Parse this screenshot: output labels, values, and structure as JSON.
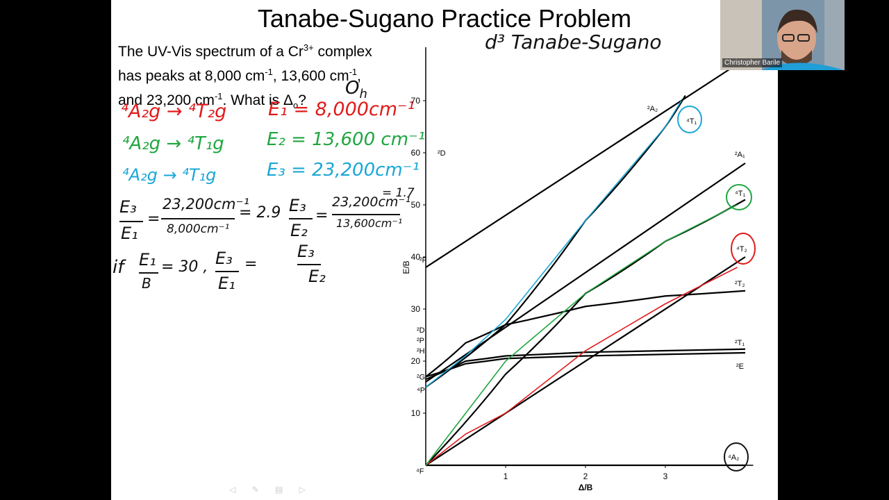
{
  "slide": {
    "title": "Tanabe-Sugano Practice Problem",
    "problem": {
      "line1_pre": "The UV-Vis spectrum of a Cr",
      "line1_sup": "3+",
      "line1_post": " complex",
      "line2_pre": "has peaks at 8,000 cm",
      "line2_sup1": "-1",
      "line2_mid": ", 13,600 cm",
      "line2_sup2": "-1",
      "line2_post": ",",
      "line3_pre": "and 23,200 cm",
      "line3_sup": "-1",
      "line3_mid": ". What is Δ",
      "line3_sub": "o",
      "line3_post": "?"
    },
    "handwriting": {
      "oh": "O",
      "oh_sub": "h",
      "diagram_label": "d³ Tanabe-Sugano",
      "row1_transition": "⁴A₂g → ⁴T₂g",
      "row1_energy": "E₁ = 8,000cm⁻¹",
      "row2_transition": "⁴A₂g → ⁴T₁g",
      "row2_energy": "E₂ = 13,600 cm⁻¹",
      "row3_transition": "⁴A₂g → ⁴T₁g",
      "row3_energy": "E₃ = 23,200cm⁻¹",
      "ratio1_lhs_num": "E₃",
      "ratio1_lhs_den": "E₁",
      "ratio1_num": "23,200cm⁻¹",
      "ratio1_den": "8,000cm⁻¹",
      "ratio1_result": "= 2.9",
      "ratio2_lhs_num": "E₃",
      "ratio2_lhs_den": "E₂",
      "ratio2_num": "23,200cm⁻¹",
      "ratio2_den": "13,600cm⁻¹",
      "ratio2_result": "= 1.7",
      "if_text": "if",
      "if_num": "E₁",
      "if_den": "B",
      "if_value": "= 30 ,",
      "if_ratio_num": "E₃",
      "if_ratio_den": "E₁",
      "if_equals": "=",
      "last_num": "E₃",
      "last_den": "E₂"
    },
    "chart": {
      "x_label": "Δ/B",
      "y_label": "E/B",
      "x_ticks": [
        "1",
        "2",
        "3"
      ],
      "y_ticks": [
        "10",
        "20",
        "30",
        "40",
        "50",
        "60",
        "70"
      ],
      "origin_label": "⁴F",
      "left_terms": [
        "²D",
        "²F",
        "²D",
        "²P",
        "²H",
        "²G",
        "⁴P"
      ],
      "right_terms": [
        "²A₂",
        "⁴T₁",
        "²A₁",
        "⁴T₁",
        "⁴T₂",
        "²T₂",
        "²T₁",
        "²E",
        "⁴A₂"
      ]
    }
  },
  "chart_data": {
    "type": "line",
    "xlabel": "Δ/B",
    "ylabel": "E/B",
    "xlim": [
      0,
      4
    ],
    "ylim": [
      0,
      75
    ],
    "series": [
      {
        "name": "⁴A₂",
        "x": [
          0,
          4
        ],
        "y": [
          0,
          0
        ]
      },
      {
        "name": "⁴T₂",
        "x": [
          0,
          4
        ],
        "y": [
          0,
          40
        ]
      },
      {
        "name": "⁴T₁",
        "x": [
          0,
          1,
          2,
          3,
          4
        ],
        "y": [
          0,
          17.5,
          33,
          43,
          51
        ]
      },
      {
        "name": "⁴T₁",
        "x": [
          0,
          1,
          2,
          3,
          3.25
        ],
        "y": [
          15,
          27,
          47,
          65,
          71
        ]
      },
      {
        "name": "²A₁",
        "x": [
          0,
          4
        ],
        "y": [
          16,
          58
        ]
      },
      {
        "name": "²A₂",
        "x": [
          0,
          4
        ],
        "y": [
          38,
          78
        ]
      },
      {
        "name": "²T₂",
        "x": [
          0,
          0.5,
          1,
          2,
          3,
          4
        ],
        "y": [
          17,
          23.5,
          27,
          30.5,
          32.5,
          33.5
        ]
      },
      {
        "name": "²T₁",
        "x": [
          0,
          0.5,
          1,
          2,
          3,
          4
        ],
        "y": [
          16.5,
          20,
          21,
          21.7,
          22,
          22.3
        ]
      },
      {
        "name": "²E",
        "x": [
          0,
          0.5,
          1,
          2,
          3,
          4
        ],
        "y": [
          17,
          19.5,
          20.5,
          21,
          21.3,
          21.6
        ]
      }
    ]
  },
  "webcam": {
    "participant_name": "Christopher Barile"
  },
  "colors": {
    "red_ink": "#e01b1b",
    "green_ink": "#1fa640",
    "blue_ink": "#1aa7d6"
  }
}
